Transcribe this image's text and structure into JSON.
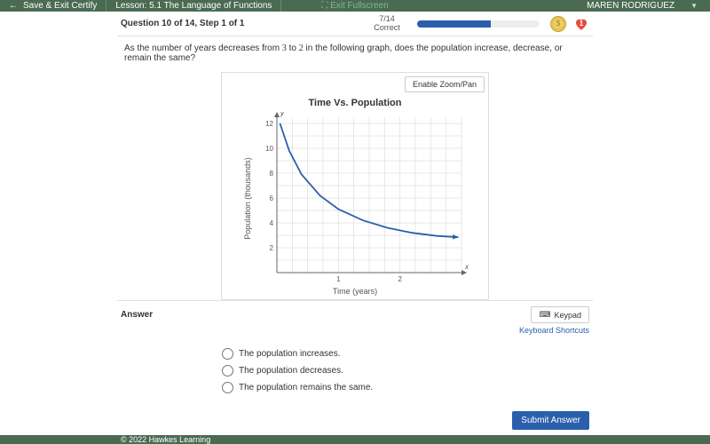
{
  "header": {
    "save_exit": "Save & Exit Certify",
    "lesson": "Lesson: 5.1 The Language of Functions",
    "center_link": "Exit Fullscreen",
    "user": "MAREN RODRIGUEZ"
  },
  "progress": {
    "question_title": "Question 10 of 14, Step 1 of 1",
    "counter": "7/14",
    "counter_label": "Correct",
    "percent": 60,
    "hearts": "1"
  },
  "question": {
    "pre": "As the number of years decreases from ",
    "from": "3",
    "mid": " to ",
    "to": "2",
    "post": " in the following graph, does the population increase, decrease, or remain the same?"
  },
  "chart": {
    "zoom_label": "Enable Zoom/Pan",
    "title": "Time Vs. Population",
    "xlabel": "Time (years)",
    "ylabel": "Population (thousands)",
    "x_ticks": [
      1,
      2
    ],
    "y_ticks": [
      2,
      4,
      6,
      8,
      10,
      12
    ],
    "xlim": [
      0,
      3
    ],
    "ylim": [
      0,
      12.5
    ],
    "curve_color": "#2b5fab",
    "grid_color": "#d0d0d0",
    "axis_color": "#666666",
    "points": [
      {
        "x": 0.05,
        "y": 12
      },
      {
        "x": 0.2,
        "y": 9.8
      },
      {
        "x": 0.4,
        "y": 7.9
      },
      {
        "x": 0.7,
        "y": 6.2
      },
      {
        "x": 1.0,
        "y": 5.1
      },
      {
        "x": 1.4,
        "y": 4.2
      },
      {
        "x": 1.8,
        "y": 3.6
      },
      {
        "x": 2.2,
        "y": 3.2
      },
      {
        "x": 2.6,
        "y": 2.95
      },
      {
        "x": 2.95,
        "y": 2.85
      }
    ]
  },
  "answer": {
    "title": "Answer",
    "keypad": "Keypad",
    "shortcuts": "Keyboard Shortcuts",
    "options": [
      "The population increases.",
      "The population decreases.",
      "The population remains the same."
    ],
    "submit": "Submit Answer"
  },
  "footer": {
    "copyright": "© 2022 Hawkes Learning"
  },
  "colors": {
    "brand_green": "#4a6b52",
    "brand_blue": "#2b5fab"
  }
}
